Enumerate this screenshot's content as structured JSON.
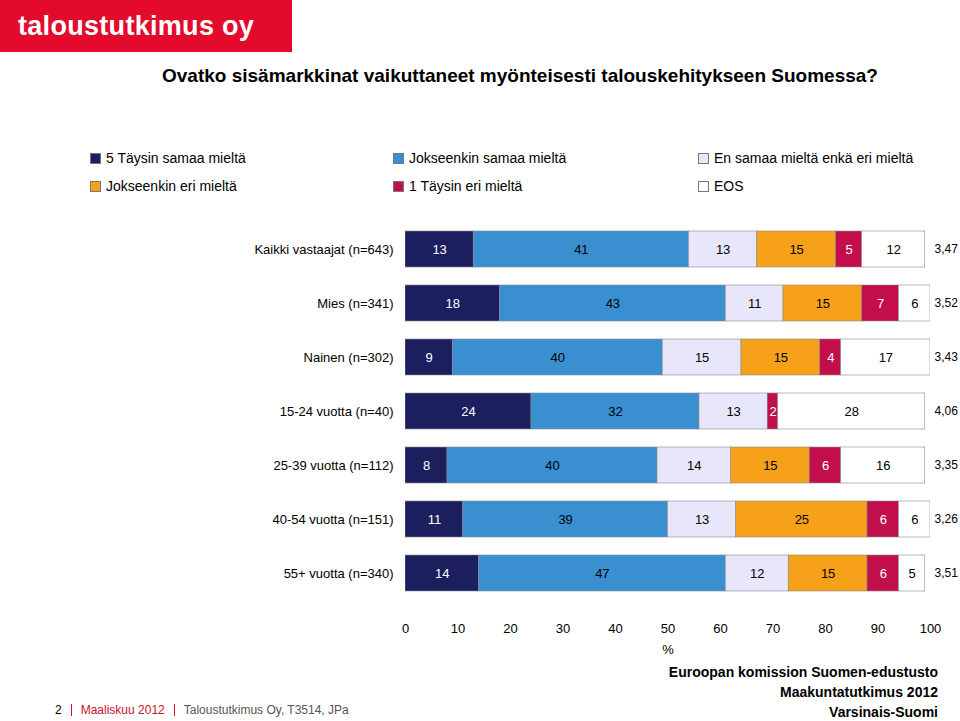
{
  "page": {
    "header": "taloustutkimus oy",
    "footer_left": [
      "2",
      "Maaliskuu 2012",
      "Taloustutkimus Oy, T3514, JPa"
    ],
    "footer_right": [
      "Euroopan komission Suomen-edustusto",
      "Maakuntatutkimus 2012",
      "Varsinais-Suomi"
    ]
  },
  "chart_data": {
    "type": "bar",
    "orientation": "horizontal",
    "stacked": true,
    "data_labels": true,
    "title": "Ovatko sisämarkkinat vaikuttaneet myönteisesti talouskehitykseen Suomessa?",
    "xlabel": "%",
    "xlim": [
      0,
      100
    ],
    "xticks": [
      0,
      10,
      20,
      30,
      40,
      50,
      60,
      70,
      80,
      90,
      100
    ],
    "categories": [
      "Kaikki vastaajat (n=643)",
      "Mies (n=341)",
      "Nainen (n=302)",
      "15-24 vuotta (n=40)",
      "25-39 vuotta (n=112)",
      "40-54 vuotta (n=151)",
      "55+ vuotta (n=340)"
    ],
    "series": [
      {
        "name": "5 Täysin samaa mieltä",
        "color": "#1b1f5e",
        "values": [
          13,
          18,
          9,
          24,
          8,
          11,
          14
        ]
      },
      {
        "name": "Jokseenkin samaa mieltä",
        "color": "#3a8fd0",
        "values": [
          41,
          43,
          40,
          32,
          40,
          39,
          47
        ]
      },
      {
        "name": "En samaa mieltä enkä eri mieltä",
        "color": "#e8e6fb",
        "values": [
          13,
          11,
          15,
          13,
          14,
          13,
          12
        ]
      },
      {
        "name": "Jokseenkin eri mieltä",
        "color": "#f7a11a",
        "values": [
          15,
          15,
          15,
          null,
          15,
          25,
          15
        ]
      },
      {
        "name": "1 Täysin eri mieltä",
        "color": "#c20f4b",
        "values": [
          5,
          7,
          4,
          2,
          6,
          6,
          6
        ]
      },
      {
        "name": "EOS",
        "color": "#ffffff",
        "values": [
          12,
          6,
          17,
          28,
          16,
          6,
          5
        ]
      }
    ],
    "averages": [
      3.47,
      3.52,
      3.43,
      4.06,
      3.35,
      3.26,
      3.51
    ],
    "average_labels": [
      "3,47",
      "3,52",
      "3,43",
      "4,06",
      "3,35",
      "3,26",
      "3,51"
    ]
  }
}
